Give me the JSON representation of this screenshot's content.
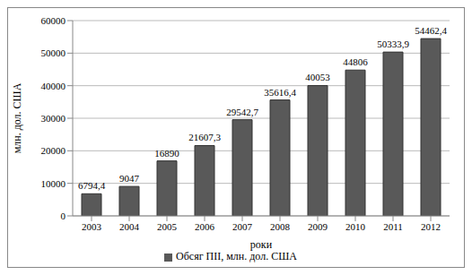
{
  "chart_data": {
    "type": "bar",
    "x_label": "роки",
    "y_label": "млн. дол. США",
    "categories": [
      "2003",
      "2004",
      "2005",
      "2006",
      "2007",
      "2008",
      "2009",
      "2010",
      "2011",
      "2012"
    ],
    "series": [
      {
        "name": "Обсяг ПІІ, млн. дол. США",
        "color": "#595959",
        "values": [
          6794.4,
          9047,
          16890,
          21607.3,
          29542.7,
          35616.4,
          40053,
          44806,
          50333.9,
          54462.4
        ],
        "value_labels": [
          "6794,4",
          "9047",
          "16890",
          "21607,3",
          "29542,7",
          "35616,4",
          "40053",
          "44806",
          "50333,9",
          "54462,4"
        ]
      }
    ],
    "ylim": [
      0,
      60000
    ],
    "yticks": [
      0,
      10000,
      20000,
      30000,
      40000,
      50000,
      60000
    ],
    "grid": true,
    "legend": "bottom",
    "data_labels": true
  }
}
